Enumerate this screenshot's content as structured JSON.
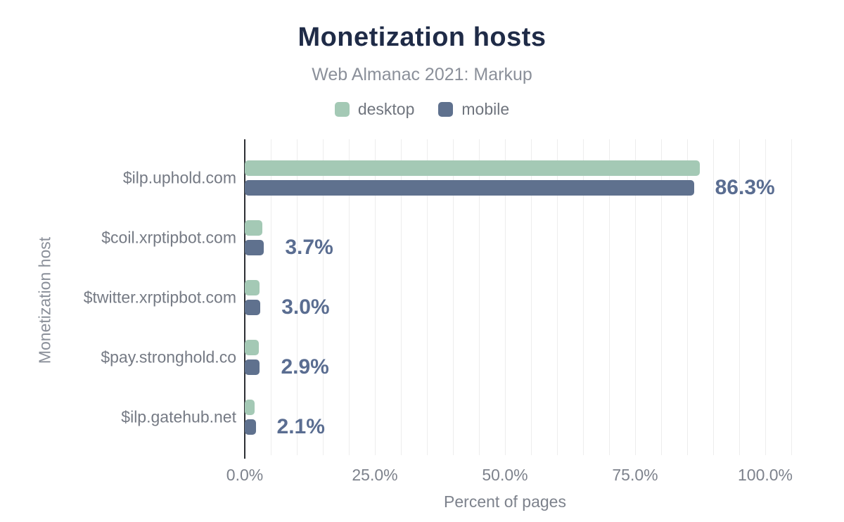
{
  "header": {
    "title": "Monetization hosts",
    "subtitle": "Web Almanac 2021: Markup"
  },
  "legend": {
    "items": [
      {
        "label": "desktop",
        "color": "#a4c9b5"
      },
      {
        "label": "mobile",
        "color": "#5f718e"
      }
    ]
  },
  "chart_data": {
    "type": "bar",
    "orientation": "horizontal",
    "title": "Monetization hosts",
    "subtitle": "Web Almanac 2021: Markup",
    "xlabel": "Percent of pages",
    "ylabel": "Monetization host",
    "categories": [
      "$ilp.uphold.com",
      "$coil.xrptipbot.com",
      "$twitter.xrptipbot.com",
      "$pay.stronghold.co",
      "$ilp.gatehub.net"
    ],
    "series": [
      {
        "name": "desktop",
        "color": "#a4c9b5",
        "values": [
          87.4,
          3.4,
          2.9,
          2.7,
          1.9
        ]
      },
      {
        "name": "mobile",
        "color": "#5f718e",
        "values": [
          86.3,
          3.7,
          3.0,
          2.9,
          2.1
        ]
      }
    ],
    "data_labels": [
      "86.3%",
      "3.7%",
      "3.0%",
      "2.9%",
      "2.1%"
    ],
    "data_label_series": "mobile",
    "x_ticks": [
      {
        "value": 0,
        "label": "0.0%"
      },
      {
        "value": 25,
        "label": "25.0%"
      },
      {
        "value": 50,
        "label": "50.0%"
      },
      {
        "value": 75,
        "label": "75.0%"
      },
      {
        "value": 100,
        "label": "100.0%"
      }
    ],
    "xlim": [
      0,
      105
    ],
    "grid": true,
    "grid_step": 5,
    "legend_position": "top"
  },
  "colors": {
    "title": "#1f2b47",
    "subtitle": "#8b909a",
    "axis_text": "#7d828c",
    "category_text": "#757a84",
    "data_label": "#5a6d91",
    "desktop": "#a4c9b5",
    "mobile": "#5f718e",
    "gridline": "#ededed",
    "axis_line": "#2d2f34",
    "background": "#ffffff"
  }
}
